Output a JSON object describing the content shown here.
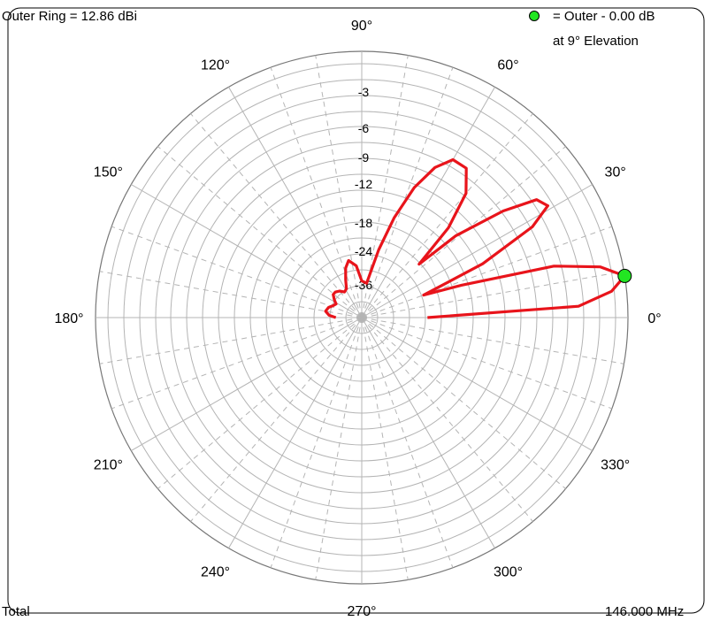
{
  "header": {
    "outer_ring": "Outer Ring = 12.86 dBi",
    "marker_label": "= Outer - 0.00 dB",
    "marker_elevation": "at 9° Elevation"
  },
  "footer": {
    "left": "Total",
    "right": "146.000 MHz"
  },
  "colors": {
    "pattern": "#e8141b",
    "marker": "#22e622",
    "grid": "#b4b4b4",
    "frame": "#000000"
  },
  "chart_data": {
    "type": "line",
    "coordinate_system": "polar",
    "title": "",
    "angle_labels": [
      "0°",
      "30°",
      "60°",
      "90°",
      "120°",
      "150°",
      "180°",
      "210°",
      "240°",
      "270°",
      "300°",
      "330°"
    ],
    "radial_labels": [
      "-3",
      "-6",
      "-9",
      "-12",
      "-18",
      "-24",
      "-36"
    ],
    "series": [
      {
        "name": "",
        "points": [
          {
            "angle": 0,
            "db": -24
          },
          {
            "angle": 3,
            "db": -3.5
          },
          {
            "angle": 6,
            "db": -1.0
          },
          {
            "angle": 9,
            "db": 0.0
          },
          {
            "angle": 12,
            "db": -1.5
          },
          {
            "angle": 15,
            "db": -5.0
          },
          {
            "angle": 18,
            "db": -16
          },
          {
            "angle": 20,
            "db": -24
          },
          {
            "angle": 24,
            "db": -12
          },
          {
            "angle": 28,
            "db": -5.5
          },
          {
            "angle": 31,
            "db": -3.5
          },
          {
            "angle": 34,
            "db": -4.0
          },
          {
            "angle": 37,
            "db": -7.0
          },
          {
            "angle": 41,
            "db": -13
          },
          {
            "angle": 43,
            "db": -21
          },
          {
            "angle": 46,
            "db": -13
          },
          {
            "angle": 50,
            "db": -8.5
          },
          {
            "angle": 55,
            "db": -6.5
          },
          {
            "angle": 60,
            "db": -6.5
          },
          {
            "angle": 64,
            "db": -8.0
          },
          {
            "angle": 68,
            "db": -11
          },
          {
            "angle": 72,
            "db": -16
          },
          {
            "angle": 76,
            "db": -23
          },
          {
            "angle": 82,
            "db": -35
          },
          {
            "angle": 90,
            "db": -34
          },
          {
            "angle": 96,
            "db": -28
          },
          {
            "angle": 103,
            "db": -26
          },
          {
            "angle": 108,
            "db": -28
          },
          {
            "angle": 113,
            "db": -32
          },
          {
            "angle": 118,
            "db": -36
          },
          {
            "angle": 124,
            "db": -37
          },
          {
            "angle": 130,
            "db": -35
          },
          {
            "angle": 136,
            "db": -34
          },
          {
            "angle": 141,
            "db": -34
          },
          {
            "angle": 147,
            "db": -36
          },
          {
            "angle": 152,
            "db": -38
          },
          {
            "angle": 157,
            "db": -37
          },
          {
            "angle": 163,
            "db": -35
          },
          {
            "angle": 170,
            "db": -34
          },
          {
            "angle": 176,
            "db": -36
          },
          {
            "angle": 180,
            "db": -40
          }
        ]
      }
    ],
    "marker": {
      "angle": 9,
      "db": 0.0
    }
  }
}
